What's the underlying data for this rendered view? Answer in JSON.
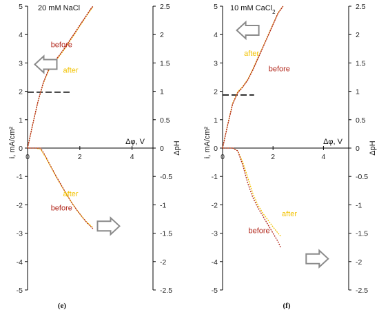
{
  "colors": {
    "before": "#b1261a",
    "after": "#f2c200",
    "axis": "#000000",
    "arrow_stroke": "#8a8a8a",
    "threshold": "#000000"
  },
  "chart_data": [
    {
      "panel": "e",
      "type": "line",
      "title": "20 mM NaCl",
      "panel_label": "(e)",
      "xlabel": "Δφ, V",
      "ylabel_left": "i, mA/cm²",
      "ylabel_right": "ΔpH",
      "xlim": [
        0,
        4.8
      ],
      "ylim_left": [
        -5,
        5
      ],
      "ylim_right": [
        -2.5,
        2.5
      ],
      "x_ticks": [
        "0",
        "2",
        "4"
      ],
      "left_ticks": [
        "5",
        "4",
        "3",
        "2",
        "1",
        "0",
        "-1",
        "-2",
        "-3",
        "-4",
        "-5"
      ],
      "right_ticks": [
        "2.5",
        "2",
        "1.5",
        "1",
        "0.5",
        "0",
        "-0.5",
        "-1",
        "-1.5",
        "-2",
        "-2.5"
      ],
      "threshold_current": 1.97,
      "threshold_x_range": [
        0,
        1.7
      ],
      "series": [
        {
          "name": "before",
          "axis": "left",
          "x": [
            0,
            0.2,
            0.4,
            0.6,
            0.8,
            1.0,
            1.2,
            1.4,
            1.6,
            1.8,
            2.0,
            2.2,
            2.4,
            2.5
          ],
          "y": [
            0,
            0.85,
            1.65,
            2.3,
            2.75,
            3.02,
            3.25,
            3.5,
            3.78,
            4.05,
            4.33,
            4.6,
            4.88,
            5.0
          ]
        },
        {
          "name": "after",
          "axis": "left",
          "x": [
            0,
            0.2,
            0.4,
            0.6,
            0.8,
            1.0,
            1.2,
            1.4,
            1.6,
            1.8,
            2.0,
            2.2,
            2.4,
            2.5
          ],
          "y": [
            0,
            0.85,
            1.65,
            2.28,
            2.72,
            3.0,
            3.22,
            3.47,
            3.75,
            4.02,
            4.3,
            4.58,
            4.85,
            4.98
          ]
        },
        {
          "name": "before",
          "axis": "right",
          "x": [
            0,
            0.3,
            0.5,
            0.7,
            0.9,
            1.1,
            1.3,
            1.5,
            1.7,
            1.9,
            2.1,
            2.3,
            2.5
          ],
          "y": [
            0,
            0,
            0,
            -0.15,
            -0.33,
            -0.5,
            -0.66,
            -0.82,
            -0.97,
            -1.1,
            -1.22,
            -1.33,
            -1.42
          ]
        },
        {
          "name": "after",
          "axis": "right",
          "x": [
            0,
            0.3,
            0.5,
            0.7,
            0.9,
            1.1,
            1.3,
            1.5,
            1.7,
            1.9,
            2.1,
            2.3,
            2.5
          ],
          "y": [
            0,
            0,
            -0.02,
            -0.17,
            -0.34,
            -0.51,
            -0.67,
            -0.82,
            -0.97,
            -1.1,
            -1.22,
            -1.32,
            -1.4
          ]
        }
      ],
      "annotations": [
        {
          "text": "before",
          "series": "before",
          "x": 1.3,
          "y": 3.65
        },
        {
          "text": "after",
          "series": "after",
          "x": 1.65,
          "y": 2.75
        },
        {
          "text": "after",
          "series": "after",
          "x": 1.65,
          "y": -1.6
        },
        {
          "text": "before",
          "series": "before",
          "x": 1.3,
          "y": -2.1
        }
      ],
      "arrows": [
        {
          "direction": "left",
          "x": 0.7,
          "y": 2.95
        },
        {
          "direction": "right",
          "x": 3.1,
          "y": -2.75
        }
      ]
    },
    {
      "panel": "f",
      "type": "line",
      "title": "10 mM CaCl",
      "title_sub": "2",
      "panel_label": "(f)",
      "xlabel": "Δφ, V",
      "ylabel_left": "i, mA/cm²",
      "ylabel_right": "ΔpH",
      "xlim": [
        0,
        5.0
      ],
      "ylim_left": [
        -5,
        5
      ],
      "ylim_right": [
        -2.5,
        2.5
      ],
      "x_ticks": [
        "0",
        "2",
        "4"
      ],
      "left_ticks": [
        "5",
        "4",
        "3",
        "2",
        "1",
        "0",
        "-1",
        "-2",
        "-3",
        "-4",
        "-5"
      ],
      "right_ticks": [
        "2.5",
        "2",
        "1.5",
        "1",
        "0.5",
        "0",
        "-0.5",
        "-1",
        "-1.5",
        "-2",
        "-2.5"
      ],
      "threshold_current": 1.87,
      "threshold_x_range": [
        0,
        1.25
      ],
      "series": [
        {
          "name": "before",
          "axis": "left",
          "x": [
            0,
            0.2,
            0.4,
            0.6,
            0.8,
            1.0,
            1.2,
            1.4,
            1.6,
            1.8,
            2.0,
            2.2,
            2.4
          ],
          "y": [
            0,
            0.8,
            1.55,
            1.95,
            2.15,
            2.4,
            2.75,
            3.15,
            3.55,
            3.95,
            4.35,
            4.75,
            5.0
          ]
        },
        {
          "name": "after",
          "axis": "left",
          "x": [
            0,
            0.2,
            0.4,
            0.6,
            0.8,
            1.0,
            1.2,
            1.4,
            1.6,
            1.8,
            2.0,
            2.2,
            2.4
          ],
          "y": [
            0,
            0.82,
            1.58,
            1.98,
            2.17,
            2.42,
            2.78,
            3.18,
            3.57,
            3.97,
            4.37,
            4.77,
            5.0
          ]
        },
        {
          "name": "before",
          "axis": "right",
          "x": [
            0,
            0.4,
            0.6,
            0.8,
            1.0,
            1.2,
            1.4,
            1.6,
            1.8,
            2.0,
            2.2,
            2.3
          ],
          "y": [
            0,
            0,
            -0.05,
            -0.3,
            -0.62,
            -0.87,
            -1.05,
            -1.2,
            -1.35,
            -1.5,
            -1.65,
            -1.75
          ]
        },
        {
          "name": "after",
          "axis": "right",
          "x": [
            0,
            0.4,
            0.6,
            0.8,
            1.0,
            1.2,
            1.4,
            1.6,
            1.8,
            2.0,
            2.2,
            2.3
          ],
          "y": [
            0,
            0,
            -0.05,
            -0.25,
            -0.52,
            -0.8,
            -1.0,
            -1.15,
            -1.27,
            -1.39,
            -1.5,
            -1.55
          ]
        }
      ],
      "annotations": [
        {
          "text": "before",
          "series": "before",
          "x": 2.25,
          "y": 2.8
        },
        {
          "text": "after",
          "series": "after",
          "x": 1.15,
          "y": 3.35
        },
        {
          "text": "after",
          "series": "after",
          "x": 2.65,
          "y": -2.3
        },
        {
          "text": "before",
          "series": "before",
          "x": 1.45,
          "y": -2.9
        }
      ],
      "arrows": [
        {
          "direction": "left",
          "x": 1.0,
          "y": 4.15
        },
        {
          "direction": "right",
          "x": 3.75,
          "y": -3.9
        }
      ]
    }
  ]
}
